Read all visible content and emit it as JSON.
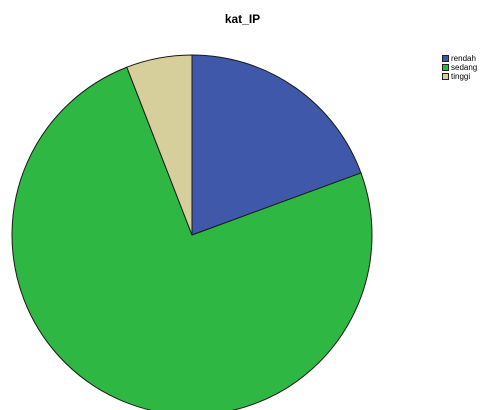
{
  "chart_data": {
    "type": "pie",
    "title": "kat_IP",
    "categories": [
      "rendah",
      "sedang",
      "tinggi"
    ],
    "values": [
      19.4,
      74.7,
      5.9
    ],
    "colors": [
      "#3f58aa",
      "#2eb843",
      "#d6cf9c"
    ],
    "legend_position": "top-right",
    "start_angle": "12 o'clock",
    "direction": "clockwise"
  }
}
